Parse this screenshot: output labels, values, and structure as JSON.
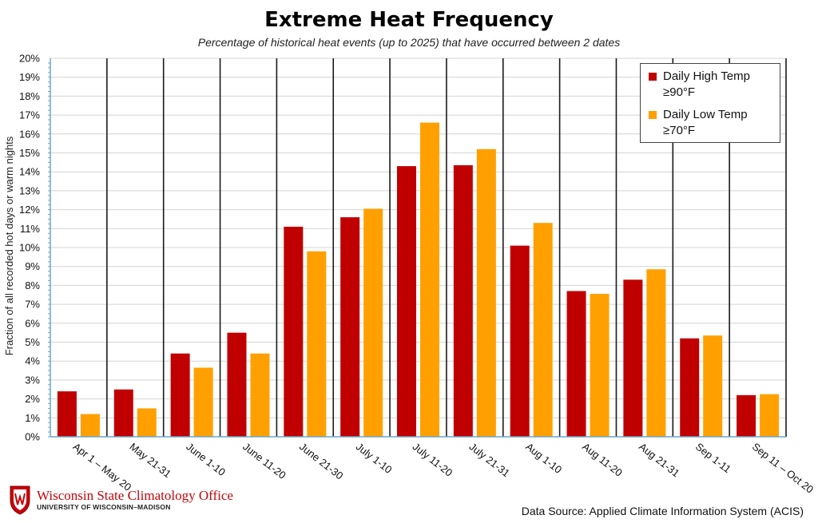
{
  "chart_data": {
    "type": "bar",
    "title": "Extreme Heat Frequency",
    "subtitle": "Percentage of historical heat events (up to 2025) that have occurred between 2 dates",
    "ylabel": "Fraction of all recorded hot days or warm nights",
    "xlabel": "",
    "ylim": [
      0,
      20
    ],
    "y_ticks": [
      "0%",
      "1%",
      "2%",
      "3%",
      "4%",
      "5%",
      "6%",
      "7%",
      "8%",
      "9%",
      "10%",
      "11%",
      "12%",
      "13%",
      "14%",
      "15%",
      "16%",
      "17%",
      "18%",
      "19%",
      "20%"
    ],
    "categories": [
      "Apr 1 – May 20",
      "May 21-31",
      "June 1-10",
      "June 11-20",
      "June 21-30",
      "July 1-10",
      "July 11-20",
      "July 21-31",
      "Aug 1-10",
      "Aug 11-20",
      "Aug 21-31",
      "Sep 1-11",
      "Sep 11 – Oct 20"
    ],
    "series": [
      {
        "name": "Daily High Temp ≥90°F",
        "color": "#c00000",
        "values": [
          2.4,
          2.5,
          4.4,
          5.5,
          11.1,
          11.6,
          14.3,
          14.35,
          10.1,
          7.7,
          8.3,
          5.2,
          2.2
        ]
      },
      {
        "name": "Daily Low Temp ≥70°F",
        "color": "#ffa000",
        "values": [
          1.2,
          1.5,
          3.65,
          4.4,
          9.8,
          12.05,
          16.6,
          15.2,
          11.3,
          7.55,
          8.85,
          5.35,
          2.25
        ]
      }
    ],
    "legend_position": "top-right",
    "grid": true
  },
  "legend": {
    "entries": [
      {
        "label": "Daily High Temp ≥90°F",
        "color": "#c00000"
      },
      {
        "label": "Daily Low Temp ≥70°F",
        "color": "#ffa000"
      }
    ]
  },
  "footer": {
    "logo_name": "Wisconsin State Climatology Office",
    "logo_sub": "UNIVERSITY OF WISCONSIN–MADISON",
    "source": "Data Source: Applied Climate Information System (ACIS)"
  }
}
